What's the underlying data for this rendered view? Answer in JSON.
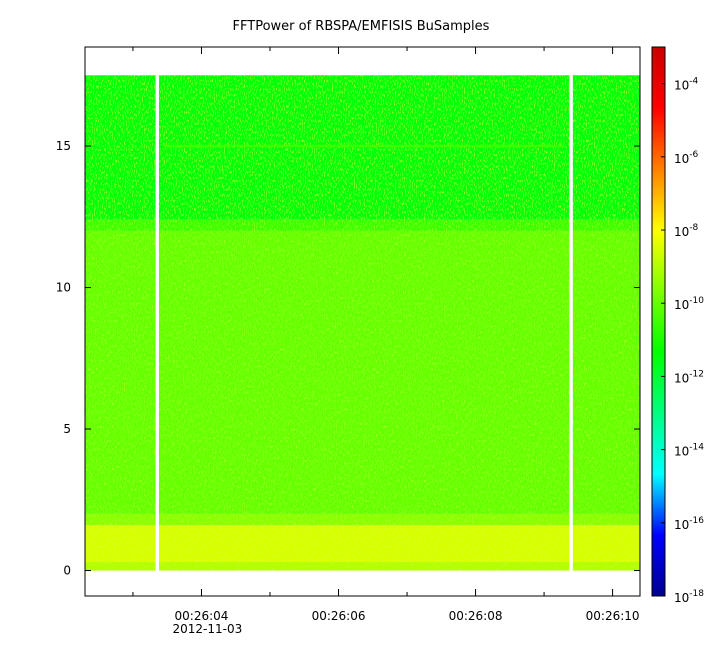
{
  "chart_data": {
    "type": "heatmap",
    "title": "FFTPower of RBSPA/EMFISIS  BuSamples",
    "xlabel": "",
    "ylabel": "",
    "x_start": "00:26:02.3",
    "x_end": "00:26:10.4",
    "x_ticks": [
      {
        "value": 4,
        "label": "00:26:04",
        "sublabel": "2012-11-03"
      },
      {
        "value": 6,
        "label": "00:26:06",
        "sublabel": ""
      },
      {
        "value": 8,
        "label": "00:26:08",
        "sublabel": ""
      },
      {
        "value": 10,
        "label": "00:26:10",
        "sublabel": ""
      }
    ],
    "x_minor_ticks": [
      3,
      5,
      7,
      9
    ],
    "xlim": [
      2.3,
      10.4
    ],
    "ylim": [
      -0.9,
      18.5
    ],
    "y_ticks": [
      {
        "value": 0,
        "label": "0"
      },
      {
        "value": 5,
        "label": "5"
      },
      {
        "value": 10,
        "label": "10"
      },
      {
        "value": 15,
        "label": "15"
      }
    ],
    "data_y_range": [
      0,
      17.5
    ],
    "gaps": [
      {
        "x_start": 3.33,
        "x_end": 3.38
      },
      {
        "x_start": 9.37,
        "x_end": 9.42
      }
    ],
    "bands": [
      {
        "y_from": 0.0,
        "y_to": 0.3,
        "power": 1e-09
      },
      {
        "y_from": 0.3,
        "y_to": 1.6,
        "power": 3e-09
      },
      {
        "y_from": 1.6,
        "y_to": 2.0,
        "power": 3e-10
      },
      {
        "y_from": 2.0,
        "y_to": 12.0,
        "power": 1e-10
      },
      {
        "y_from": 12.0,
        "y_to": 12.4,
        "power": 3e-11
      },
      {
        "y_from": 12.4,
        "y_to": 17.5,
        "power": 3e-12
      }
    ],
    "lines": [
      {
        "y": 15.0,
        "x_from": 3.45,
        "x_to": 9.3,
        "power": 3e-11
      }
    ],
    "colorbar": {
      "scale": "log",
      "range": [
        1e-18,
        0.001
      ],
      "ticks": [
        {
          "exponent": -4,
          "label": "10",
          "exp": "-4"
        },
        {
          "exponent": -6,
          "label": "10",
          "exp": "-6"
        },
        {
          "exponent": -8,
          "label": "10",
          "exp": "-8"
        },
        {
          "exponent": -10,
          "label": "10",
          "exp": "-10"
        },
        {
          "exponent": -12,
          "label": "10",
          "exp": "-12"
        },
        {
          "exponent": -14,
          "label": "10",
          "exp": "-14"
        },
        {
          "exponent": -16,
          "label": "10",
          "exp": "-16"
        },
        {
          "exponent": -18,
          "label": "10",
          "exp": "-18"
        }
      ],
      "colors": [
        "#00008f",
        "#0000ff",
        "#00ffff",
        "#00ff80",
        "#00ff00",
        "#80ff00",
        "#ffff00",
        "#ff8000",
        "#ff0000",
        "#cc0000"
      ]
    }
  }
}
